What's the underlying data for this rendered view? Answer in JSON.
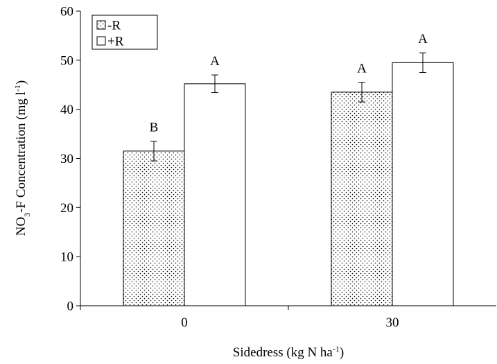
{
  "chart_data": {
    "type": "bar",
    "categories": [
      "0",
      "30"
    ],
    "series": [
      {
        "name": "-R",
        "values": [
          31.5,
          43.5
        ],
        "errors": [
          2.0,
          2.0
        ],
        "letters": [
          "B",
          "A"
        ],
        "fill": "dots"
      },
      {
        "name": "+R",
        "values": [
          45.2,
          49.5
        ],
        "errors": [
          1.8,
          2.0
        ],
        "letters": [
          "A",
          "A"
        ],
        "fill": "white"
      }
    ],
    "ylim": [
      0,
      60
    ],
    "yticks": [
      0,
      10,
      20,
      30,
      40,
      50,
      60
    ],
    "xlabel": {
      "main": "Sidedress (kg N ha",
      "sup": "-1",
      "tail": ")"
    },
    "ylabel": {
      "p1": "NO",
      "sub": "3",
      "p2": "-F Concentration (mg l",
      "sup": "-1",
      "p3": ")"
    },
    "legend": {
      "position": "top-left",
      "box": true
    },
    "grid": false,
    "colors": {
      "axis": "#000000",
      "bar_stroke": "#000000",
      "bar_fill_plain": "#ffffff",
      "dot_color": "#000000"
    }
  }
}
